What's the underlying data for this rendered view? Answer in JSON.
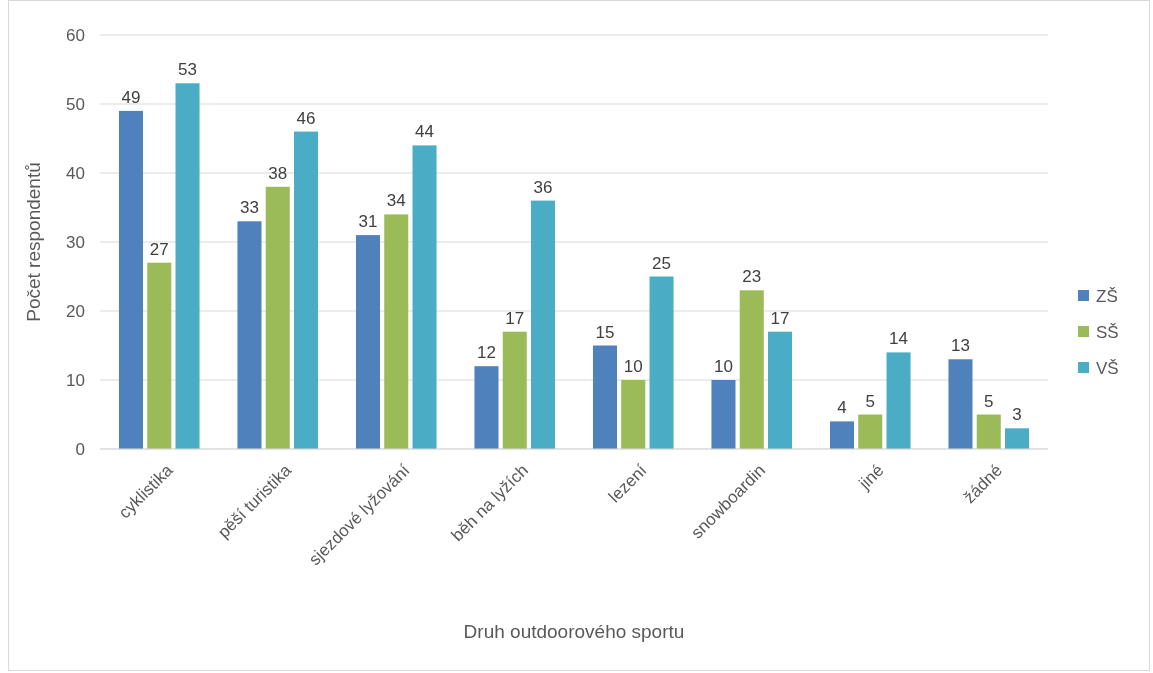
{
  "chart_data": {
    "type": "bar",
    "xlabel": "Druh outdoorového sportu",
    "ylabel": "Počet respondentů",
    "categories": [
      "cyklistika",
      "pěší turistika",
      "sjezdové lyžování",
      "běh na lyžích",
      "lezení",
      "snowboardin",
      "jiné",
      "žádné"
    ],
    "series": [
      {
        "name": "ZŠ",
        "color": "#4f81bd",
        "values": [
          49,
          33,
          31,
          12,
          15,
          10,
          4,
          13
        ]
      },
      {
        "name": "SŠ",
        "color": "#9bbb59",
        "values": [
          27,
          38,
          34,
          17,
          10,
          23,
          5,
          5
        ]
      },
      {
        "name": "VŠ",
        "color": "#4bacc6",
        "values": [
          53,
          46,
          44,
          36,
          25,
          17,
          14,
          3
        ]
      }
    ],
    "ylim": [
      0,
      60
    ],
    "yticks": [
      0,
      10,
      20,
      30,
      40,
      50,
      60
    ],
    "grid": "y",
    "legend": "right",
    "data_labels": true
  }
}
